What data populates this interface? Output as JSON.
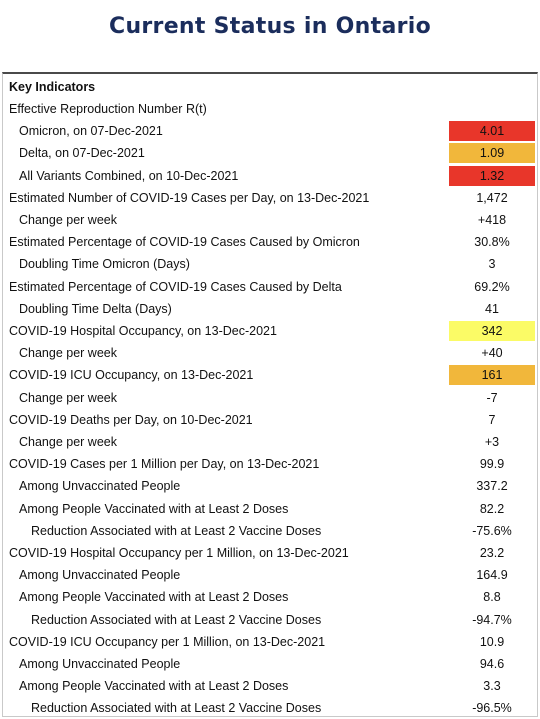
{
  "title": "Current Status in Ontario",
  "table": {
    "heading": "Key Indicators",
    "rows": [
      {
        "label": "Effective Reproduction Number R(t)",
        "value": "",
        "level": 0
      },
      {
        "label": "Omicron, on 07-Dec-2021",
        "value": "4.01",
        "level": 1,
        "highlight": "red"
      },
      {
        "label": "Delta, on 07-Dec-2021",
        "value": "1.09",
        "level": 1,
        "highlight": "orange"
      },
      {
        "label": "All Variants Combined, on 10-Dec-2021",
        "value": "1.32",
        "level": 1,
        "highlight": "red"
      },
      {
        "label": "Estimated Number of COVID-19 Cases per Day, on 13-Dec-2021",
        "value": "1,472",
        "level": 0
      },
      {
        "label": "Change per week",
        "value": "+418",
        "level": 1
      },
      {
        "label": "Estimated Percentage of COVID-19 Cases Caused by Omicron",
        "value": "30.8%",
        "level": 0
      },
      {
        "label": "Doubling Time Omicron (Days)",
        "value": "3",
        "level": 1
      },
      {
        "label": "Estimated Percentage of COVID-19 Cases Caused by Delta",
        "value": "69.2%",
        "level": 0
      },
      {
        "label": "Doubling Time Delta (Days)",
        "value": "41",
        "level": 1
      },
      {
        "label": "COVID-19 Hospital Occupancy, on 13-Dec-2021",
        "value": "342",
        "level": 0,
        "highlight": "yellow"
      },
      {
        "label": "Change per week",
        "value": "+40",
        "level": 1
      },
      {
        "label": "COVID-19 ICU Occupancy, on 13-Dec-2021",
        "value": "161",
        "level": 0,
        "highlight": "orange"
      },
      {
        "label": "Change per week",
        "value": "-7",
        "level": 1
      },
      {
        "label": "COVID-19 Deaths per Day, on 10-Dec-2021",
        "value": "7",
        "level": 0
      },
      {
        "label": "Change per week",
        "value": "+3",
        "level": 1
      },
      {
        "label": "COVID-19 Cases per 1 Million per Day, on 13-Dec-2021",
        "value": "99.9",
        "level": 0
      },
      {
        "label": "Among Unvaccinated People",
        "value": "337.2",
        "level": 1
      },
      {
        "label": "Among People Vaccinated with at Least 2 Doses",
        "value": "82.2",
        "level": 1
      },
      {
        "label": "Reduction Associated with at Least 2 Vaccine Doses",
        "value": "-75.6%",
        "level": 2
      },
      {
        "label": "COVID-19 Hospital Occupancy per 1 Million, on 13-Dec-2021",
        "value": "23.2",
        "level": 0
      },
      {
        "label": "Among Unvaccinated People",
        "value": "164.9",
        "level": 1
      },
      {
        "label": "Among People Vaccinated with at Least 2 Doses",
        "value": "8.8",
        "level": 1
      },
      {
        "label": "Reduction Associated with at Least 2 Vaccine Doses",
        "value": "-94.7%",
        "level": 2
      },
      {
        "label": "COVID-19 ICU Occupancy per 1 Million, on 13-Dec-2021",
        "value": "10.9",
        "level": 0
      },
      {
        "label": "Among Unvaccinated People",
        "value": "94.6",
        "level": 1
      },
      {
        "label": "Among People Vaccinated with at Least 2 Doses",
        "value": "3.3",
        "level": 1
      },
      {
        "label": "Reduction Associated with at Least 2 Vaccine Doses",
        "value": "-96.5%",
        "level": 2
      }
    ]
  },
  "colors": {
    "title": "#1b2d5c",
    "red": "#e8362a",
    "orange": "#f1b73b",
    "yellow": "#fbfb66"
  }
}
